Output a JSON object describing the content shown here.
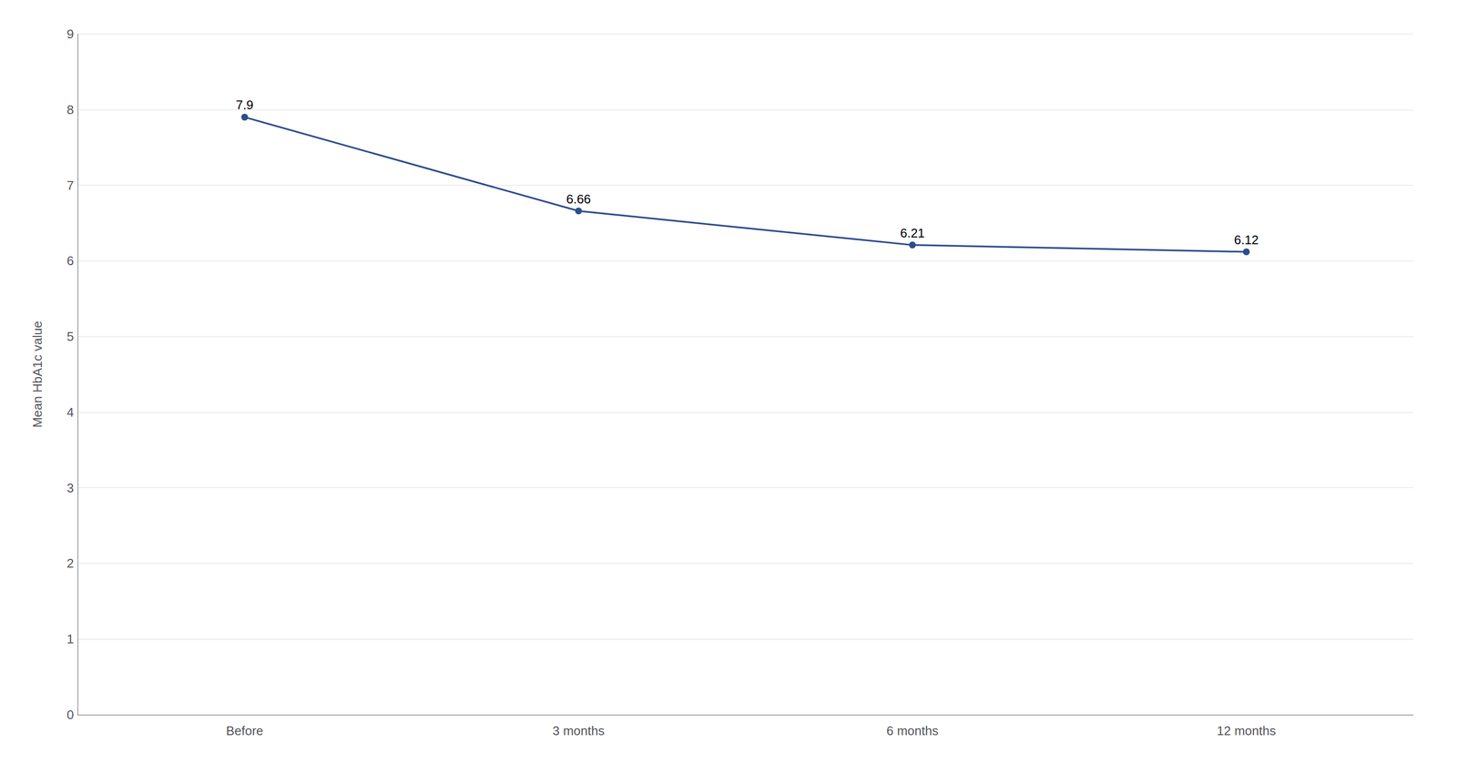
{
  "chart_data": {
    "type": "line",
    "categories": [
      "Before",
      "3 months",
      "6 months",
      "12 months"
    ],
    "values": [
      7.9,
      6.66,
      6.21,
      6.12
    ],
    "color": "#2e4d8e",
    "marker": "circle",
    "data_labels": true,
    "ylabel": "Mean HbA1c value",
    "ylim": [
      0,
      9
    ],
    "yticks": [
      0,
      1,
      2,
      3,
      4,
      5,
      6,
      7,
      8,
      9
    ],
    "grid": true
  }
}
